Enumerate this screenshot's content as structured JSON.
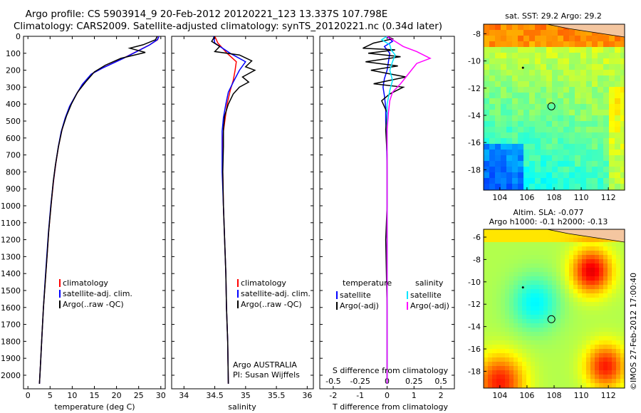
{
  "header": {
    "title_line1": "Argo profile: CS 5903914_9 20-Feb-2012 20120221_123 13.337S 107.798E",
    "title_line2": "Climatology: CARS2009. Satellite-adjusted climatology: synTS_20120221.nc (0.34d later)"
  },
  "colors": {
    "climatology": "#ff0000",
    "satellite": "#0000ff",
    "argo": "#000000",
    "sat_sal": "#00e5ff",
    "argo_sal": "#ff00ff"
  },
  "chart_data": [
    {
      "type": "line",
      "id": "temperature",
      "xlabel": "temperature (deg C)",
      "ylabel": "",
      "xlim": [
        -1,
        31
      ],
      "ylim": [
        2080,
        0
      ],
      "xticks": [
        0,
        5,
        10,
        15,
        20,
        25,
        30
      ],
      "yticks": [
        0,
        100,
        200,
        300,
        400,
        500,
        600,
        700,
        800,
        900,
        1000,
        1100,
        1200,
        1300,
        1400,
        1500,
        1600,
        1700,
        1800,
        1900,
        2000
      ],
      "legend": [
        "climatology",
        "satellite-adj. clim.",
        "Argo(..raw -QC)"
      ],
      "series": [
        {
          "name": "climatology",
          "color": "#ff0000",
          "points": [
            [
              29.5,
              0
            ],
            [
              29.3,
              20
            ],
            [
              27.5,
              50
            ],
            [
              24.5,
              90
            ],
            [
              21.5,
              130
            ],
            [
              17,
              185
            ],
            [
              14.5,
              220
            ],
            [
              12.5,
              280
            ],
            [
              11,
              340
            ],
            [
              9.5,
              410
            ],
            [
              8.5,
              480
            ],
            [
              7.6,
              560
            ],
            [
              6.9,
              650
            ],
            [
              6.3,
              750
            ],
            [
              5.8,
              850
            ],
            [
              5.2,
              1000
            ],
            [
              4.7,
              1150
            ],
            [
              4.3,
              1300
            ],
            [
              3.9,
              1450
            ],
            [
              3.5,
              1600
            ],
            [
              3.2,
              1750
            ],
            [
              2.9,
              1900
            ],
            [
              2.6,
              2050
            ]
          ]
        },
        {
          "name": "satellite-adj. clim.",
          "color": "#0000ff",
          "points": [
            [
              29.6,
              0
            ],
            [
              29.2,
              20
            ],
            [
              27.4,
              52
            ],
            [
              24.4,
              92
            ],
            [
              21.3,
              133
            ],
            [
              16.8,
              188
            ],
            [
              14.3,
              223
            ],
            [
              12.3,
              283
            ],
            [
              10.9,
              343
            ],
            [
              9.4,
              413
            ],
            [
              8.4,
              483
            ],
            [
              7.5,
              563
            ],
            [
              6.85,
              653
            ],
            [
              6.25,
              753
            ],
            [
              5.75,
              853
            ],
            [
              5.15,
              1003
            ],
            [
              4.65,
              1153
            ],
            [
              4.25,
              1303
            ],
            [
              3.85,
              1453
            ],
            [
              3.5,
              1600
            ],
            [
              3.2,
              1750
            ],
            [
              2.9,
              1900
            ],
            [
              2.6,
              2050
            ]
          ]
        },
        {
          "name": "Argo(..raw -QC)",
          "color": "#000000",
          "points": [
            [
              29.2,
              0
            ],
            [
              28.8,
              20
            ],
            [
              26,
              50
            ],
            [
              23,
              70
            ],
            [
              26.5,
              95
            ],
            [
              21,
              130
            ],
            [
              17.5,
              170
            ],
            [
              15,
              210
            ],
            [
              13,
              270
            ],
            [
              11.2,
              330
            ],
            [
              9.8,
              400
            ],
            [
              8.7,
              470
            ],
            [
              7.7,
              550
            ],
            [
              6.9,
              650
            ],
            [
              6.2,
              760
            ],
            [
              5.7,
              860
            ],
            [
              5.2,
              1000
            ],
            [
              4.7,
              1150
            ],
            [
              4.3,
              1300
            ],
            [
              3.9,
              1450
            ],
            [
              3.5,
              1600
            ],
            [
              3.2,
              1750
            ],
            [
              2.9,
              1900
            ],
            [
              2.6,
              2050
            ]
          ]
        }
      ]
    },
    {
      "type": "line",
      "id": "salinity",
      "xlabel": "salinity",
      "xlim": [
        33.8,
        36.1
      ],
      "ylim": [
        2080,
        0
      ],
      "xticks": [
        34,
        34.5,
        35,
        35.5,
        36
      ],
      "legend": [
        "climatology",
        "satellite-adj. clim.",
        "Argo(..raw -QC)"
      ],
      "annotations": [
        "Argo AUSTRALIA",
        "PI: Susan Wijffels"
      ],
      "series": [
        {
          "name": "climatology",
          "color": "#ff0000",
          "points": [
            [
              34.5,
              0
            ],
            [
              34.55,
              40
            ],
            [
              34.7,
              100
            ],
            [
              34.85,
              150
            ],
            [
              34.83,
              200
            ],
            [
              34.8,
              260
            ],
            [
              34.75,
              320
            ],
            [
              34.7,
              400
            ],
            [
              34.67,
              480
            ],
            [
              34.64,
              560
            ],
            [
              34.63,
              650
            ],
            [
              34.63,
              800
            ],
            [
              34.64,
              1000
            ],
            [
              34.66,
              1200
            ],
            [
              34.68,
              1400
            ],
            [
              34.69,
              1600
            ],
            [
              34.71,
              1800
            ],
            [
              34.72,
              2050
            ]
          ]
        },
        {
          "name": "satellite-adj. clim.",
          "color": "#0000ff",
          "points": [
            [
              34.48,
              0
            ],
            [
              34.5,
              40
            ],
            [
              34.75,
              100
            ],
            [
              35,
              150
            ],
            [
              34.9,
              200
            ],
            [
              34.8,
              270
            ],
            [
              34.72,
              330
            ],
            [
              34.68,
              400
            ],
            [
              34.64,
              480
            ],
            [
              34.62,
              560
            ],
            [
              34.62,
              650
            ],
            [
              34.62,
              800
            ],
            [
              34.64,
              1000
            ],
            [
              34.66,
              1200
            ],
            [
              34.68,
              1400
            ],
            [
              34.69,
              1600
            ],
            [
              34.71,
              1800
            ],
            [
              34.72,
              2050
            ]
          ]
        },
        {
          "name": "Argo(..raw -QC)",
          "color": "#000000",
          "points": [
            [
              34.5,
              0
            ],
            [
              34.45,
              30
            ],
            [
              34.58,
              60
            ],
            [
              34.5,
              90
            ],
            [
              34.9,
              110
            ],
            [
              35.1,
              145
            ],
            [
              35.0,
              180
            ],
            [
              35.15,
              200
            ],
            [
              34.95,
              240
            ],
            [
              35.05,
              270
            ],
            [
              34.9,
              300
            ],
            [
              34.8,
              340
            ],
            [
              34.72,
              400
            ],
            [
              34.66,
              470
            ],
            [
              34.64,
              550
            ],
            [
              34.64,
              650
            ],
            [
              34.63,
              800
            ],
            [
              34.64,
              1000
            ],
            [
              34.66,
              1200
            ],
            [
              34.68,
              1400
            ],
            [
              34.69,
              1600
            ],
            [
              34.71,
              1800
            ],
            [
              34.72,
              2050
            ]
          ]
        }
      ]
    },
    {
      "type": "line",
      "id": "difference",
      "xlabel": "T difference from climatology",
      "xlabel_top": "S difference from climatology",
      "xlim": [
        -2.5,
        2.5
      ],
      "ylim": [
        2080,
        0
      ],
      "xticks": [
        -2,
        -1,
        0,
        1,
        2
      ],
      "xticks_s": [
        "-0.5",
        "-0.25",
        "0",
        "0.25",
        "0.5"
      ],
      "legend_t_title": "temperature",
      "legend_s_title": "salinity",
      "legend": [
        "satellite",
        "Argo(-adj)",
        "satellite",
        "Argo(-adj)"
      ],
      "series": [
        {
          "name": "satellite",
          "color": "#0000ff",
          "points": [
            [
              0,
              0
            ],
            [
              0.2,
              30
            ],
            [
              -0.1,
              60
            ],
            [
              0.1,
              100
            ],
            [
              0.05,
              150
            ],
            [
              0,
              200
            ],
            [
              -0.1,
              250
            ],
            [
              -0.15,
              300
            ],
            [
              -0.1,
              350
            ],
            [
              -0.05,
              420
            ],
            [
              -0.05,
              500
            ],
            [
              -0.02,
              600
            ],
            [
              0,
              800
            ],
            [
              0,
              1200
            ],
            [
              0,
              1600
            ],
            [
              0,
              2050
            ]
          ]
        },
        {
          "name": "Argo(-adj)",
          "color": "#000000",
          "points": [
            [
              0,
              0
            ],
            [
              0.2,
              15
            ],
            [
              -0.5,
              40
            ],
            [
              -0.9,
              70
            ],
            [
              0.3,
              80
            ],
            [
              -0.7,
              100
            ],
            [
              0.5,
              120
            ],
            [
              -0.8,
              150
            ],
            [
              0.4,
              175
            ],
            [
              -0.6,
              200
            ],
            [
              0.7,
              240
            ],
            [
              -0.5,
              280
            ],
            [
              0.6,
              300
            ],
            [
              0.1,
              340
            ],
            [
              -0.2,
              380
            ],
            [
              0,
              450
            ],
            [
              -0.05,
              550
            ],
            [
              0,
              700
            ],
            [
              0,
              1000
            ],
            [
              -0.05,
              1200
            ],
            [
              0,
              1600
            ],
            [
              0,
              2050
            ]
          ]
        },
        {
          "name": "satellite",
          "color": "#00e5ff",
          "points": [
            [
              0,
              0
            ],
            [
              -0.2,
              20
            ],
            [
              0.1,
              50
            ],
            [
              0.15,
              80
            ],
            [
              0.3,
              110
            ],
            [
              0.2,
              150
            ],
            [
              0.1,
              200
            ],
            [
              0.2,
              260
            ],
            [
              0.1,
              320
            ],
            [
              0,
              400
            ],
            [
              0,
              500
            ],
            [
              0,
              800
            ],
            [
              0,
              1200
            ],
            [
              0,
              1600
            ],
            [
              0,
              2050
            ]
          ]
        },
        {
          "name": "Argo(-adj)",
          "color": "#ff00ff",
          "points": [
            [
              0,
              0
            ],
            [
              0.3,
              30
            ],
            [
              0.6,
              60
            ],
            [
              1.1,
              90
            ],
            [
              1.6,
              130
            ],
            [
              1.1,
              160
            ],
            [
              0.9,
              200
            ],
            [
              0.7,
              240
            ],
            [
              0.5,
              280
            ],
            [
              0.2,
              330
            ],
            [
              0.1,
              380
            ],
            [
              0.05,
              450
            ],
            [
              0,
              550
            ],
            [
              0,
              800
            ],
            [
              0,
              1200
            ],
            [
              0,
              1600
            ],
            [
              0,
              2050
            ]
          ]
        }
      ]
    },
    {
      "type": "heatmap",
      "id": "sst-map",
      "title": "sat. SST: 29.2  Argo: 29.2",
      "xlim": [
        102.8,
        113.2
      ],
      "ylim": [
        -19.5,
        -7.3
      ],
      "xticks": [
        104,
        106,
        108,
        110,
        112
      ],
      "yticks": [
        -8,
        -10,
        -12,
        -14,
        -16,
        -18
      ],
      "argo_position": [
        107.8,
        -13.34
      ],
      "prev_position": [
        105.7,
        -10.5
      ]
    },
    {
      "type": "heatmap",
      "id": "sla-map",
      "title_line1": "Altim. SLA: -0.077",
      "title_line2": "Argo h1000: -0.1 h2000: -0.13",
      "xlim": [
        102.8,
        113.2
      ],
      "ylim": [
        -19.5,
        -5.3
      ],
      "xticks": [
        104,
        106,
        108,
        110,
        112
      ],
      "yticks": [
        -6,
        -8,
        -10,
        -12,
        -14,
        -16,
        -18
      ],
      "argo_position": [
        107.8,
        -13.34
      ],
      "prev_position": [
        105.7,
        -10.5
      ]
    }
  ],
  "footer": {
    "stamp": "©IMOS 27-Feb-2012 17:00:40"
  }
}
